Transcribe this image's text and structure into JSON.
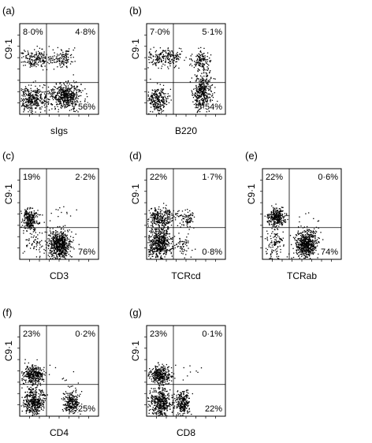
{
  "chart_data": [
    {
      "type": "scatter",
      "panel_label": "(a)",
      "xlabel": "sIgs",
      "ylabel": "C9·1",
      "quadrants": {
        "upper_left": "8·0%",
        "upper_right": "4·8%",
        "lower_left": "",
        "lower_right": "56%"
      },
      "populations": [
        {
          "x": 0.18,
          "y": 0.62,
          "sx": 0.11,
          "sy": 0.05,
          "n": 200
        },
        {
          "x": 0.55,
          "y": 0.62,
          "sx": 0.07,
          "sy": 0.05,
          "n": 110
        },
        {
          "x": 0.15,
          "y": 0.18,
          "sx": 0.1,
          "sy": 0.07,
          "n": 350
        },
        {
          "x": 0.58,
          "y": 0.2,
          "sx": 0.1,
          "sy": 0.07,
          "n": 500
        }
      ]
    },
    {
      "type": "scatter",
      "panel_label": "(b)",
      "xlabel": "B220",
      "ylabel": "C9·1",
      "quadrants": {
        "upper_left": "7·0%",
        "upper_right": "5·1%",
        "lower_left": "",
        "lower_right": "54%"
      },
      "populations": [
        {
          "x": 0.22,
          "y": 0.63,
          "sx": 0.14,
          "sy": 0.05,
          "n": 230
        },
        {
          "x": 0.7,
          "y": 0.6,
          "sx": 0.05,
          "sy": 0.06,
          "n": 130
        },
        {
          "x": 0.14,
          "y": 0.16,
          "sx": 0.06,
          "sy": 0.07,
          "n": 260
        },
        {
          "x": 0.7,
          "y": 0.24,
          "sx": 0.06,
          "sy": 0.11,
          "n": 420
        }
      ]
    },
    {
      "type": "scatter",
      "panel_label": "(c)",
      "xlabel": "CD3",
      "ylabel": "C9·1",
      "quadrants": {
        "upper_left": "19%",
        "upper_right": "2·2%",
        "lower_left": "",
        "lower_right": "76%"
      },
      "populations": [
        {
          "x": 0.12,
          "y": 0.45,
          "sx": 0.05,
          "sy": 0.06,
          "n": 260
        },
        {
          "x": 0.2,
          "y": 0.2,
          "sx": 0.07,
          "sy": 0.1,
          "n": 80
        },
        {
          "x": 0.5,
          "y": 0.17,
          "sx": 0.07,
          "sy": 0.08,
          "n": 600
        },
        {
          "x": 0.55,
          "y": 0.5,
          "sx": 0.08,
          "sy": 0.05,
          "n": 12
        }
      ]
    },
    {
      "type": "scatter",
      "panel_label": "(d)",
      "xlabel": "TCRcd",
      "ylabel": "C9·1",
      "quadrants": {
        "upper_left": "22%",
        "upper_right": "1·7%",
        "lower_left": "",
        "lower_right": "0·8%"
      },
      "populations": [
        {
          "x": 0.18,
          "y": 0.47,
          "sx": 0.09,
          "sy": 0.06,
          "n": 280
        },
        {
          "x": 0.5,
          "y": 0.45,
          "sx": 0.05,
          "sy": 0.05,
          "n": 80
        },
        {
          "x": 0.16,
          "y": 0.18,
          "sx": 0.08,
          "sy": 0.09,
          "n": 550
        },
        {
          "x": 0.45,
          "y": 0.16,
          "sx": 0.05,
          "sy": 0.06,
          "n": 60
        }
      ]
    },
    {
      "type": "scatter",
      "panel_label": "(e)",
      "xlabel": "TCRab",
      "ylabel": "C9·1",
      "quadrants": {
        "upper_left": "22%",
        "upper_right": "0·6%",
        "lower_left": "",
        "lower_right": "74%"
      },
      "populations": [
        {
          "x": 0.17,
          "y": 0.47,
          "sx": 0.06,
          "sy": 0.05,
          "n": 280
        },
        {
          "x": 0.16,
          "y": 0.18,
          "sx": 0.07,
          "sy": 0.09,
          "n": 120
        },
        {
          "x": 0.55,
          "y": 0.17,
          "sx": 0.07,
          "sy": 0.08,
          "n": 560
        },
        {
          "x": 0.6,
          "y": 0.5,
          "sx": 0.08,
          "sy": 0.05,
          "n": 6
        }
      ]
    },
    {
      "type": "scatter",
      "panel_label": "(f)",
      "xlabel": "CD4",
      "ylabel": "C9·1",
      "quadrants": {
        "upper_left": "23%",
        "upper_right": "0·2%",
        "lower_left": "",
        "lower_right": "25%"
      },
      "populations": [
        {
          "x": 0.17,
          "y": 0.46,
          "sx": 0.07,
          "sy": 0.05,
          "n": 330
        },
        {
          "x": 0.17,
          "y": 0.16,
          "sx": 0.07,
          "sy": 0.08,
          "n": 420
        },
        {
          "x": 0.66,
          "y": 0.15,
          "sx": 0.05,
          "sy": 0.07,
          "n": 260
        },
        {
          "x": 0.62,
          "y": 0.47,
          "sx": 0.08,
          "sy": 0.06,
          "n": 6
        }
      ]
    },
    {
      "type": "scatter",
      "panel_label": "(g)",
      "xlabel": "CD8",
      "ylabel": "C9·1",
      "quadrants": {
        "upper_left": "23%",
        "upper_right": "0·1%",
        "lower_left": "",
        "lower_right": "22%"
      },
      "populations": [
        {
          "x": 0.17,
          "y": 0.46,
          "sx": 0.07,
          "sy": 0.05,
          "n": 320
        },
        {
          "x": 0.17,
          "y": 0.16,
          "sx": 0.07,
          "sy": 0.08,
          "n": 420
        },
        {
          "x": 0.45,
          "y": 0.15,
          "sx": 0.05,
          "sy": 0.07,
          "n": 240
        },
        {
          "x": 0.55,
          "y": 0.5,
          "sx": 0.07,
          "sy": 0.06,
          "n": 8
        }
      ]
    }
  ]
}
